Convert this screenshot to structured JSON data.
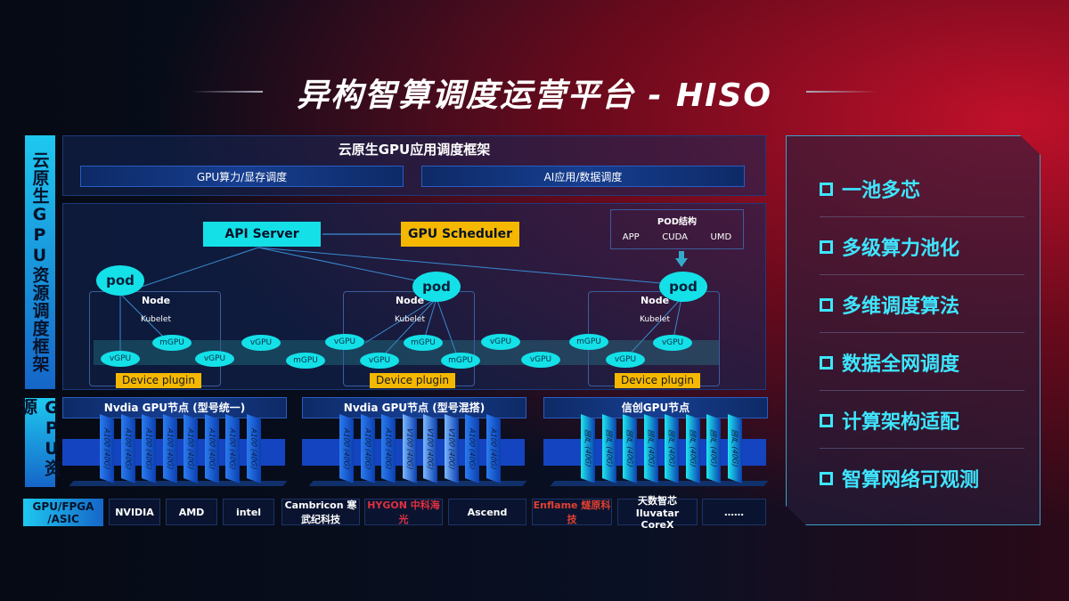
{
  "title": "异构智算调度运营平台 - HISO",
  "left_labels": {
    "top": "云原生GPU资源调度框架",
    "bottom": "GPU资源"
  },
  "framework": {
    "title": "云原生GPU应用调度框架",
    "bar_left": "GPU算力/显存调度",
    "bar_right": "AI应用/数据调度"
  },
  "api_server": "API Server",
  "gpu_scheduler": "GPU Scheduler",
  "pod_struct": {
    "title": "POD结构",
    "items": [
      "APP",
      "CUDA",
      "UMD"
    ]
  },
  "pod": "pod",
  "node": "Node",
  "kubelet": "Kubelet",
  "device_plugin": "Device plugin",
  "vgpu": "vGPU",
  "mgpu": "mGPU",
  "gpu_nodes": [
    {
      "title": "Nvdia GPU节点 (型号统一)",
      "cards": [
        "A100 (40G)",
        "A100 (40G)",
        "A100 (40G)",
        "A100 (40G)",
        "A100 (40G)",
        "A100 (40G)",
        "A100 (40G)",
        "A100 (40G)"
      ]
    },
    {
      "title": "Nvdia GPU节点 (型号混搭)",
      "cards": [
        "A100 (40G)",
        "A100 (40G)",
        "A100 (40G)",
        "V100 (40G)",
        "V100 (40G)",
        "V100 (40G)",
        "A100 (40G)",
        "A100 (40G)"
      ]
    },
    {
      "title": "信创GPU节点",
      "cards": [
        "国产 (40G)",
        "国产 (40G)",
        "国产 (40G)",
        "国产 (40G)",
        "国产 (40G)",
        "国产 (40G)",
        "国产 (40G)",
        "国产 (40G)"
      ]
    }
  ],
  "vendors": {
    "label": "GPU/FPGA /ASIC",
    "items": [
      "NVIDIA",
      "AMD",
      "intel",
      "Cambricon 寒武纪科技",
      "HYGON 中科海光",
      "Ascend",
      "Enflame 燧原科技",
      "天数智芯 Iluvatar CoreX",
      "……"
    ]
  },
  "features": [
    "一池多芯",
    "多级算力池化",
    "多维调度算法",
    "数据全网调度",
    "计算架构适配",
    "智算网络可观测"
  ],
  "colors": {
    "cyan": "#14e0e8",
    "yellow": "#f5b800",
    "accent": "#3ee6ff"
  }
}
